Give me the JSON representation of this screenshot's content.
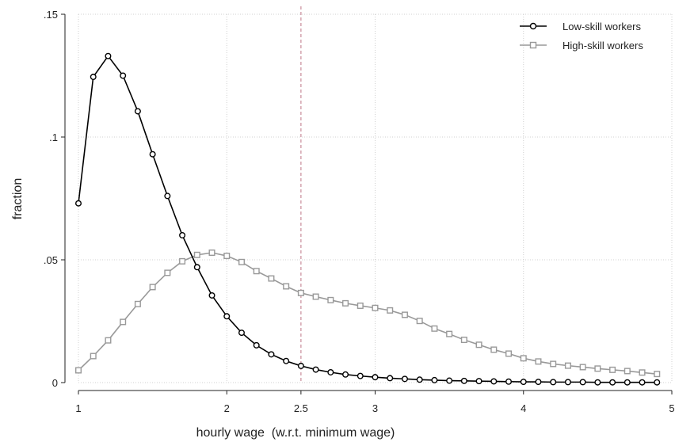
{
  "chart_data": {
    "type": "line",
    "xlabel": "hourly wage  (w.r.t. minimum wage)",
    "ylabel": "fraction",
    "xlim": [
      1,
      5
    ],
    "ylim": [
      0,
      0.15
    ],
    "x_ticks": [
      {
        "value": 1,
        "label": "1"
      },
      {
        "value": 2,
        "label": "2"
      },
      {
        "value": 2.5,
        "label": "2.5"
      },
      {
        "value": 3,
        "label": "3"
      },
      {
        "value": 4,
        "label": "4"
      },
      {
        "value": 5,
        "label": "5"
      }
    ],
    "y_ticks": [
      {
        "value": 0,
        "label": "0"
      },
      {
        "value": 0.05,
        "label": ".05"
      },
      {
        "value": 0.1,
        "label": ".1"
      },
      {
        "value": 0.15,
        "label": ".15"
      }
    ],
    "grid": true,
    "reference_line": {
      "x": 2.5,
      "color": "#c98c9a",
      "style": "dashed"
    },
    "legend_position": "top-right",
    "x": [
      1,
      1.1,
      1.2,
      1.3,
      1.4,
      1.5,
      1.6,
      1.7,
      1.8,
      1.9,
      2,
      2.1,
      2.2,
      2.3,
      2.4,
      2.5,
      2.6,
      2.7,
      2.8,
      2.9,
      3,
      3.1,
      3.2,
      3.3,
      3.4,
      3.5,
      3.6,
      3.7,
      3.8,
      3.9,
      4,
      4.1,
      4.2,
      4.3,
      4.4,
      4.5,
      4.6,
      4.7,
      4.8,
      4.9
    ],
    "series": [
      {
        "name": "Low-skill workers",
        "color": "#000000",
        "marker": "circle",
        "values": [
          0.073,
          0.1245,
          0.133,
          0.125,
          0.1105,
          0.093,
          0.076,
          0.06,
          0.047,
          0.0355,
          0.027,
          0.0203,
          0.0152,
          0.0115,
          0.0088,
          0.0068,
          0.0053,
          0.0042,
          0.0033,
          0.0027,
          0.0022,
          0.0018,
          0.0015,
          0.0012,
          0.001,
          0.0008,
          0.0007,
          0.0006,
          0.0005,
          0.0004,
          0.0003,
          0.0003,
          0.0002,
          0.0002,
          0.0002,
          0.0001,
          0.0001,
          0.0001,
          0.0001,
          0.0001
        ]
      },
      {
        "name": "High-skill workers",
        "color": "#999999",
        "marker": "square",
        "values": [
          0.005,
          0.0108,
          0.0172,
          0.0247,
          0.032,
          0.0389,
          0.0447,
          0.0494,
          0.052,
          0.0529,
          0.0516,
          0.0491,
          0.0454,
          0.0424,
          0.0392,
          0.0365,
          0.035,
          0.0336,
          0.0323,
          0.0313,
          0.0304,
          0.0294,
          0.0276,
          0.0251,
          0.022,
          0.0198,
          0.0174,
          0.0154,
          0.0134,
          0.0118,
          0.0099,
          0.0086,
          0.0076,
          0.0069,
          0.0063,
          0.0057,
          0.0052,
          0.0047,
          0.0041,
          0.0035
        ]
      }
    ]
  }
}
